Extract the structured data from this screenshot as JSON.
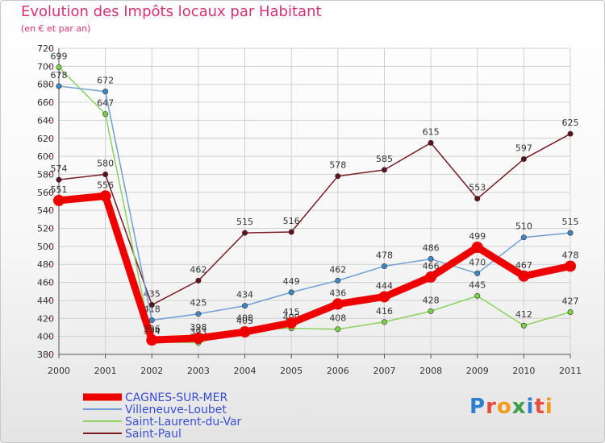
{
  "title": "Evolution des Impôts locaux par Habitant",
  "subtitle": "(en € et par an)",
  "logo": "Proxiti",
  "colors": {
    "title": "#d9336e",
    "grid": "#d0d0d0",
    "axis": "#555555"
  },
  "chart_data": {
    "type": "line",
    "title": "Evolution des Impôts locaux par Habitant",
    "subtitle": "(en € et par an)",
    "xlabel": "",
    "ylabel": "",
    "ylim": [
      380,
      720
    ],
    "yticks": [
      380,
      400,
      420,
      440,
      460,
      480,
      500,
      520,
      540,
      560,
      580,
      600,
      620,
      640,
      660,
      680,
      700,
      720
    ],
    "categories": [
      "2000",
      "2001",
      "2002",
      "2003",
      "2004",
      "2005",
      "2006",
      "2007",
      "2008",
      "2009",
      "2010",
      "2011"
    ],
    "grid": true,
    "legend_position": "bottom-left",
    "series": [
      {
        "name": "Saint-Paul",
        "color": "#7b1c22",
        "marker": "#5e1219",
        "values": [
          574,
          580,
          435,
          462,
          515,
          516,
          578,
          585,
          615,
          553,
          597,
          625
        ]
      },
      {
        "name": "Saint-Laurent-du-Var",
        "color": "#8bd35c",
        "marker": "#7cd043",
        "values": [
          699,
          647,
          394,
          393,
          408,
          409,
          408,
          416,
          428,
          445,
          412,
          427
        ]
      },
      {
        "name": "Villeneuve-Loubet",
        "color": "#6e9fd6",
        "marker": "#3f86c6",
        "values": [
          678,
          672,
          418,
          425,
          434,
          449,
          462,
          478,
          486,
          470,
          510,
          515
        ]
      },
      {
        "name": "CAGNES-SUR-MER",
        "color": "#ee0000",
        "marker": "#ee0000",
        "thick": true,
        "values": [
          551,
          556,
          396,
          398,
          405,
          415,
          436,
          444,
          466,
          499,
          467,
          478
        ]
      }
    ],
    "legend_order": [
      "CAGNES-SUR-MER",
      "Villeneuve-Loubet",
      "Saint-Laurent-du-Var",
      "Saint-Paul"
    ]
  }
}
